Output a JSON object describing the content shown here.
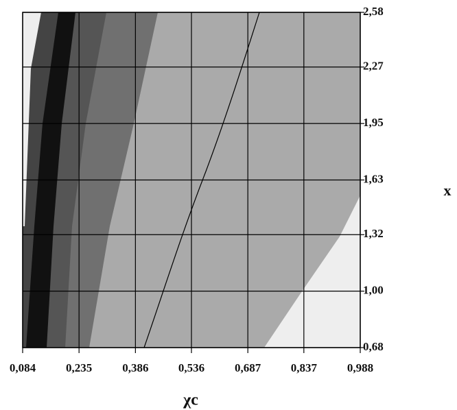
{
  "chart_data": {
    "type": "contour",
    "x_label": "χc",
    "y_label": "x",
    "xlim": [
      0.084,
      0.988
    ],
    "xticks": [
      {
        "value": 0.084,
        "label": "0,084"
      },
      {
        "value": 0.235,
        "label": "0,235"
      },
      {
        "value": 0.386,
        "label": "0,386"
      },
      {
        "value": 0.536,
        "label": "0,536"
      },
      {
        "value": 0.687,
        "label": "0,687"
      },
      {
        "value": 0.837,
        "label": "0,837"
      },
      {
        "value": 0.988,
        "label": "0,988"
      }
    ],
    "ylim": [
      0.68,
      2.58
    ],
    "yticks": [
      {
        "value": 0.68,
        "label": "0,68"
      },
      {
        "value": 1.0,
        "label": "1,00"
      },
      {
        "value": 1.32,
        "label": "1,32"
      },
      {
        "value": 1.63,
        "label": "1,63"
      },
      {
        "value": 1.95,
        "label": "1,95"
      },
      {
        "value": 2.27,
        "label": "2,27"
      },
      {
        "value": 2.58,
        "label": "2,58"
      }
    ],
    "grid": true
  }
}
